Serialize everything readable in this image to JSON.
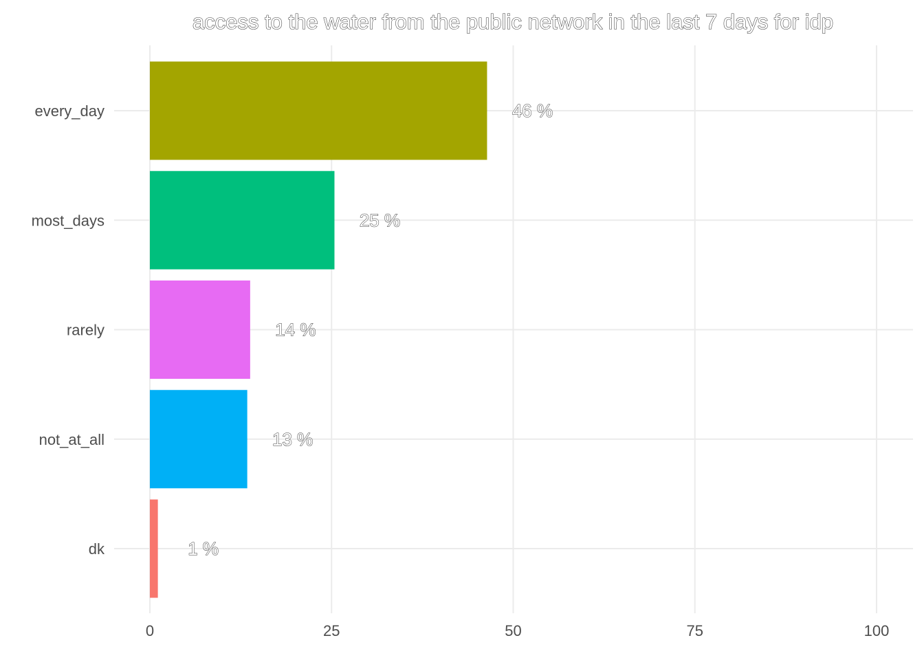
{
  "chart_data": {
    "type": "bar",
    "orientation": "horizontal",
    "title": "access to the water from the public network in the last 7 days for idp",
    "xlabel": "",
    "ylabel": "",
    "categories": [
      "every_day",
      "most_days",
      "rarely",
      "not_at_all",
      "dk"
    ],
    "values": [
      46.4,
      25.4,
      13.8,
      13.4,
      1.1
    ],
    "data_labels": [
      "46 %",
      "25 %",
      "14 %",
      "13 %",
      "1 %"
    ],
    "colors": [
      "#A3A500",
      "#00BF7D",
      "#E76BF3",
      "#00B0F6",
      "#F8766D"
    ],
    "xlim": [
      0,
      100
    ],
    "xticks": [
      0,
      25,
      50,
      75,
      100
    ],
    "xtick_labels": [
      "0",
      "25",
      "50",
      "75",
      "100"
    ],
    "grid": true,
    "legend": "none"
  }
}
